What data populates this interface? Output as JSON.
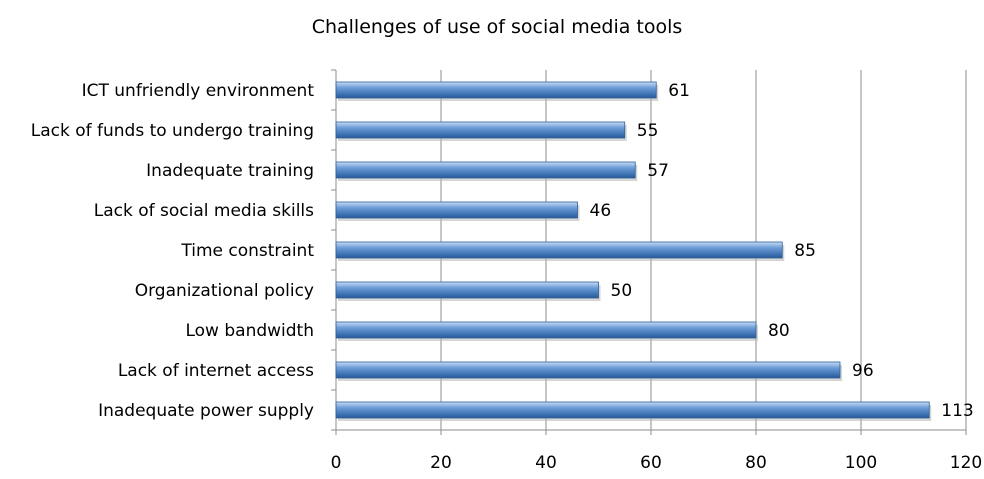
{
  "chart_data": {
    "type": "bar",
    "orientation": "horizontal",
    "title": "Challenges of use of social media tools",
    "categories": [
      "Inadequate power supply",
      "Lack of internet access",
      "Low bandwidth",
      "Organizational policy",
      "Time constraint",
      "Lack of social media skills",
      "Inadequate training",
      "Lack of funds to undergo training",
      "ICT unfriendly environment"
    ],
    "values": [
      113,
      96,
      80,
      50,
      85,
      46,
      57,
      55,
      61
    ],
    "xlim": [
      0,
      120
    ],
    "xticks": [
      "0",
      "20",
      "40",
      "60",
      "80",
      "100",
      "120"
    ],
    "grid": "vertical",
    "legend": "none",
    "colors": {
      "bar": "#4f81bd",
      "bar_light": "#9cc0ec",
      "bar_dark": "#2e5e9c"
    }
  }
}
